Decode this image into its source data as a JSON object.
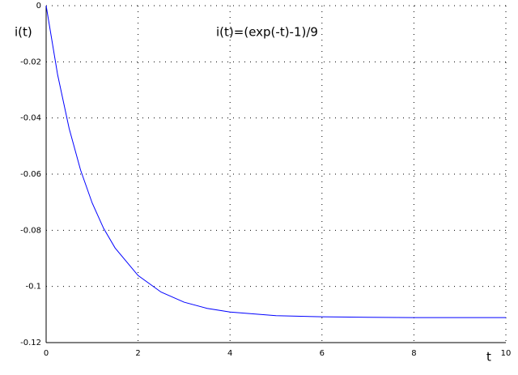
{
  "chart_data": {
    "type": "line",
    "title": "i(t)=(exp(-t)-1)/9",
    "x_label": "t",
    "y_label": "i(t)",
    "x": [
      0,
      0.25,
      0.5,
      0.75,
      1,
      1.25,
      1.5,
      2,
      2.5,
      3,
      3.5,
      4,
      5,
      6,
      7,
      8,
      9,
      10
    ],
    "series": [
      {
        "name": "i(t)",
        "color": "#0000ff",
        "values": [
          0,
          -0.0246,
          -0.0437,
          -0.0586,
          -0.0702,
          -0.0793,
          -0.0863,
          -0.0961,
          -0.102,
          -0.1056,
          -0.1078,
          -0.1091,
          -0.1104,
          -0.1108,
          -0.111,
          -0.1111,
          -0.1111,
          -0.1111
        ]
      }
    ],
    "xlim": [
      0,
      10
    ],
    "xticks": [
      0,
      2,
      4,
      6,
      8,
      10
    ],
    "ylim": [
      -0.12,
      0
    ],
    "yticks": [
      0,
      -0.02,
      -0.04,
      -0.06,
      -0.08,
      -0.1,
      -0.12
    ],
    "grid": true
  }
}
